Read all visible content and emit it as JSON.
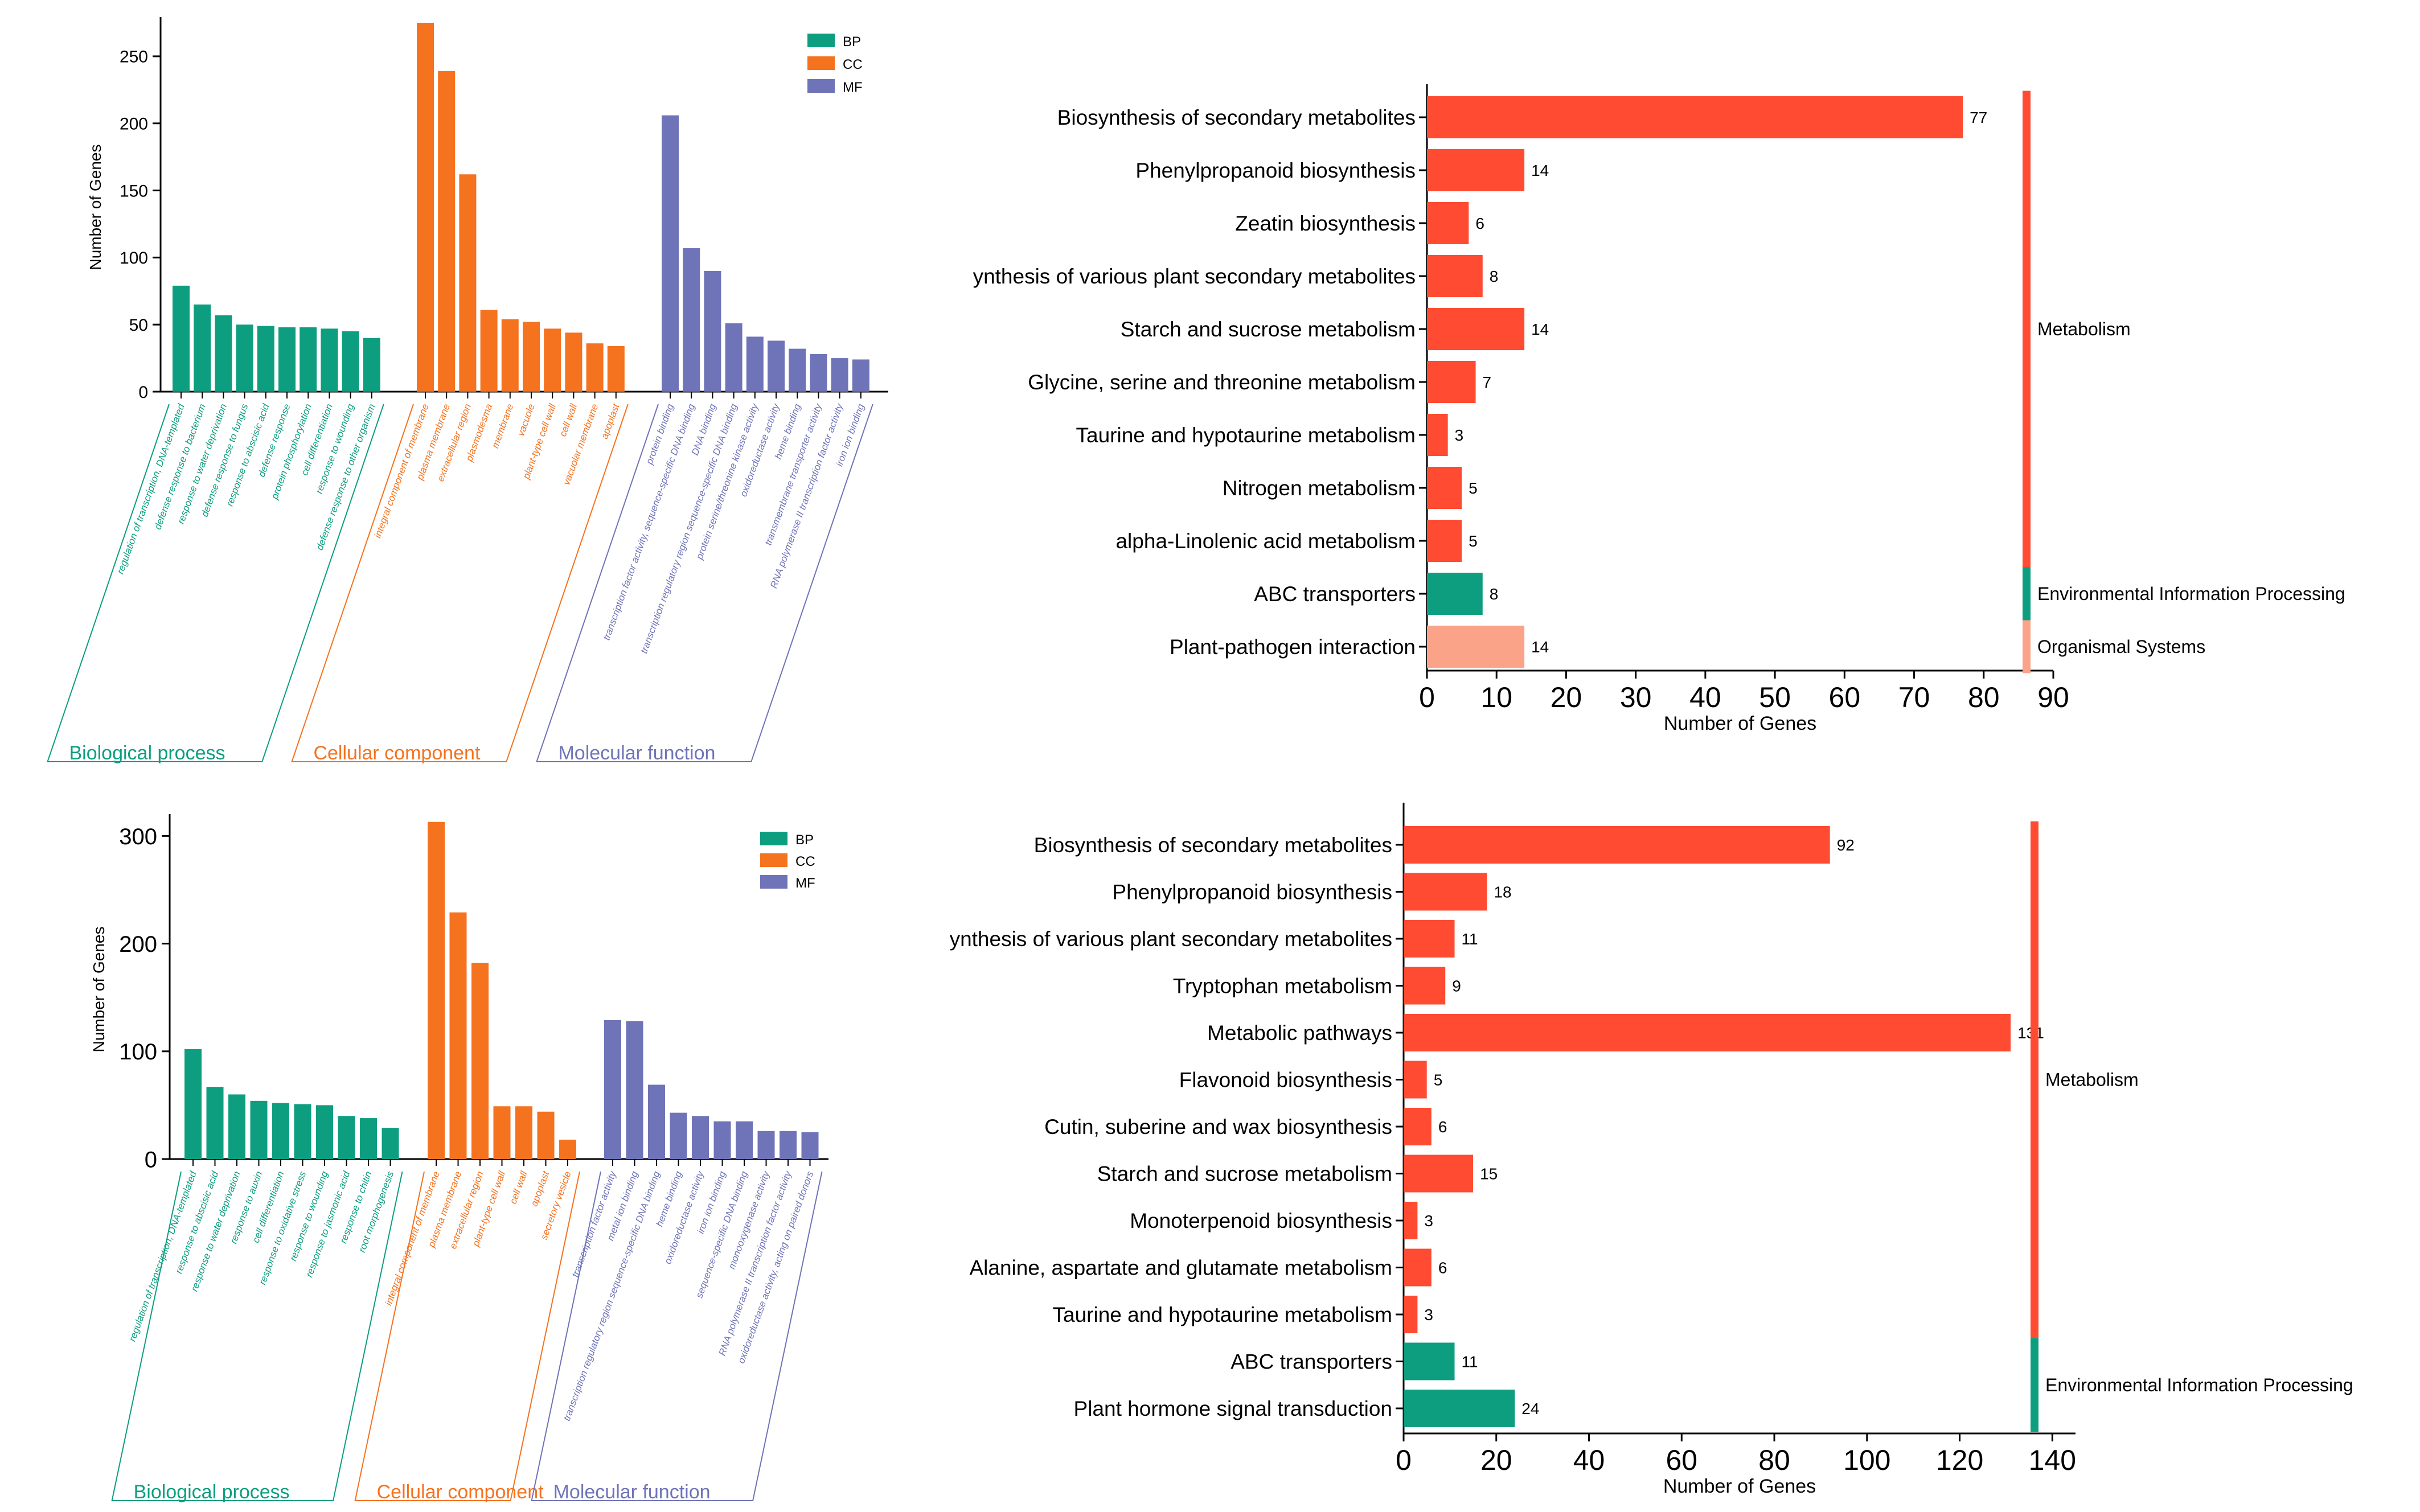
{
  "colors": {
    "BP": "#0d9e80",
    "CC": "#f5721f",
    "MF": "#6f74b8",
    "Metabolism": "#ff4b31",
    "Environmental Information Processing": "#0d9e80",
    "Organismal Systems": "#fba388"
  },
  "chart_data": [
    {
      "panel": "a",
      "type": "bar",
      "ylabel": "Number of Genes",
      "ylim": [
        0,
        275
      ],
      "yticks": [
        0,
        50,
        100,
        150,
        200,
        250
      ],
      "legend": [
        "BP",
        "CC",
        "MF"
      ],
      "legend_position": "top-right",
      "groups": [
        {
          "key": "BP",
          "name": "Biological process",
          "categories": [
            "regulation of transcription, DNA-templated",
            "defense response to bacterium",
            "response to water deprivation",
            "defense response to fungus",
            "response to abscisic acid",
            "defense response",
            "protein phosphorylation",
            "cell differentiation",
            "response to wounding",
            "defense response to other organism"
          ],
          "values": [
            79,
            65,
            57,
            50,
            49,
            48,
            48,
            47,
            45,
            40
          ]
        },
        {
          "key": "CC",
          "name": "Cellular component",
          "categories": [
            "integral component of membrane",
            "plasma membrane",
            "extracellular region",
            "plasmodesma",
            "membrane",
            "vacuole",
            "plant-type cell wall",
            "cell wall",
            "vacuolar membrane",
            "apoplast"
          ],
          "values": [
            275,
            239,
            162,
            61,
            54,
            52,
            47,
            44,
            36,
            34
          ]
        },
        {
          "key": "MF",
          "name": "Molecular function",
          "categories": [
            "protein binding",
            "transcription factor activity, sequence-specific DNA binding",
            "DNA binding",
            "transcription regulatory region sequence-specific DNA binding",
            "protein serine/threonine kinase activity",
            "oxidoreductase activity",
            "heme binding",
            "transmembrane transporter activity",
            "RNA polymerase II transcription factor activity",
            "iron ion binding"
          ],
          "values": [
            206,
            107,
            90,
            51,
            41,
            38,
            32,
            28,
            25,
            24
          ]
        }
      ]
    },
    {
      "panel": "b",
      "type": "bar",
      "ylabel": "Number of Genes",
      "ylim": [
        0,
        315
      ],
      "yticks": [
        0,
        100,
        200,
        300
      ],
      "legend": [
        "BP",
        "CC",
        "MF"
      ],
      "legend_position": "top-right",
      "groups": [
        {
          "key": "BP",
          "name": "Biological process",
          "categories": [
            "regulation of transcription, DNA-templated",
            "response to abscisic acid",
            "response to water deprivation",
            "response to auxin",
            "cell differentiation",
            "response to oxidative stress",
            "response to wounding",
            "response to jasmonic acid",
            "response to chitin",
            "root morphogenesis"
          ],
          "values": [
            102,
            67,
            60,
            54,
            52,
            51,
            50,
            40,
            38,
            29
          ]
        },
        {
          "key": "CC",
          "name": "Cellular component",
          "categories": [
            "integral component of membrane",
            "plasma membrane",
            "extracellular region",
            "plant-type cell wall",
            "cell wall",
            "apoplast",
            "secretory vesicle"
          ],
          "values": [
            313,
            229,
            182,
            49,
            49,
            44,
            18
          ]
        },
        {
          "key": "MF",
          "name": "Molecular function",
          "categories": [
            "transcription factor activity",
            "metal ion binding",
            "transcription regulatory region sequence-specific DNA binding",
            "heme binding",
            "oxidoreductase activity",
            "iron ion binding",
            "sequence-specific DNA binding",
            "monooxygenase activity",
            "RNA polymerase II transcription factor activity",
            "oxidoreductase activity, acting on paired donors"
          ],
          "values": [
            129,
            128,
            69,
            43,
            40,
            35,
            35,
            26,
            26,
            25
          ]
        }
      ]
    },
    {
      "panel": "c",
      "type": "bar",
      "orientation": "horizontal",
      "xlabel": "Number of Genes",
      "xlim": [
        0,
        90
      ],
      "xticks": [
        0,
        10,
        20,
        30,
        40,
        50,
        60,
        70,
        80,
        90
      ],
      "categories": [
        "Biosynthesis of secondary metabolites",
        "Phenylpropanoid biosynthesis",
        "Zeatin biosynthesis",
        "ynthesis of various plant secondary metabolites",
        "Starch and sucrose metabolism",
        "Glycine, serine and threonine metabolism",
        "Taurine and hypotaurine metabolism",
        "Nitrogen metabolism",
        "alpha-Linolenic acid metabolism",
        "ABC transporters",
        "Plant-pathogen interaction"
      ],
      "values": [
        77,
        14,
        6,
        8,
        14,
        7,
        3,
        5,
        5,
        8,
        14
      ],
      "value_labels": [
        "77",
        "14",
        "6",
        "8",
        "14",
        "7",
        "3",
        "5",
        "5",
        "8",
        "14"
      ],
      "class": [
        "Metabolism",
        "Metabolism",
        "Metabolism",
        "Metabolism",
        "Metabolism",
        "Metabolism",
        "Metabolism",
        "Metabolism",
        "Metabolism",
        "Environmental Information Processing",
        "Organismal Systems"
      ],
      "class_spans": [
        {
          "label": "Metabolism",
          "start": 0,
          "end": 8
        },
        {
          "label": "Environmental Information Processing",
          "start": 9,
          "end": 9
        },
        {
          "label": "Organismal Systems",
          "start": 10,
          "end": 10
        }
      ]
    },
    {
      "panel": "d",
      "type": "bar",
      "orientation": "horizontal",
      "xlabel": "Number of Genes",
      "xlim": [
        0,
        145
      ],
      "xticks": [
        0,
        20,
        40,
        60,
        80,
        100,
        120,
        140
      ],
      "categories": [
        "Biosynthesis of secondary metabolites",
        "Phenylpropanoid biosynthesis",
        "ynthesis of various plant secondary metabolites",
        "Tryptophan metabolism",
        "Metabolic pathways",
        "Flavonoid biosynthesis",
        "Cutin, suberine and wax biosynthesis",
        "Starch and sucrose metabolism",
        "Monoterpenoid biosynthesis",
        "Alanine, aspartate and glutamate metabolism",
        "Taurine and hypotaurine metabolism",
        "ABC transporters",
        "Plant hormone signal transduction"
      ],
      "values": [
        92,
        18,
        11,
        9,
        131,
        5,
        6,
        15,
        3,
        6,
        3,
        11,
        24
      ],
      "value_labels": [
        "92",
        "18",
        "11",
        "9",
        "131",
        "5",
        "6",
        "15",
        "3",
        "6",
        "3",
        "11",
        "24"
      ],
      "class": [
        "Metabolism",
        "Metabolism",
        "Metabolism",
        "Metabolism",
        "Metabolism",
        "Metabolism",
        "Metabolism",
        "Metabolism",
        "Metabolism",
        "Metabolism",
        "Metabolism",
        "Environmental Information Processing",
        "Environmental Information Processing"
      ],
      "class_spans": [
        {
          "label": "Metabolism",
          "start": 0,
          "end": 10
        },
        {
          "label": "Environmental Information Processing",
          "start": 11,
          "end": 12
        }
      ]
    }
  ]
}
